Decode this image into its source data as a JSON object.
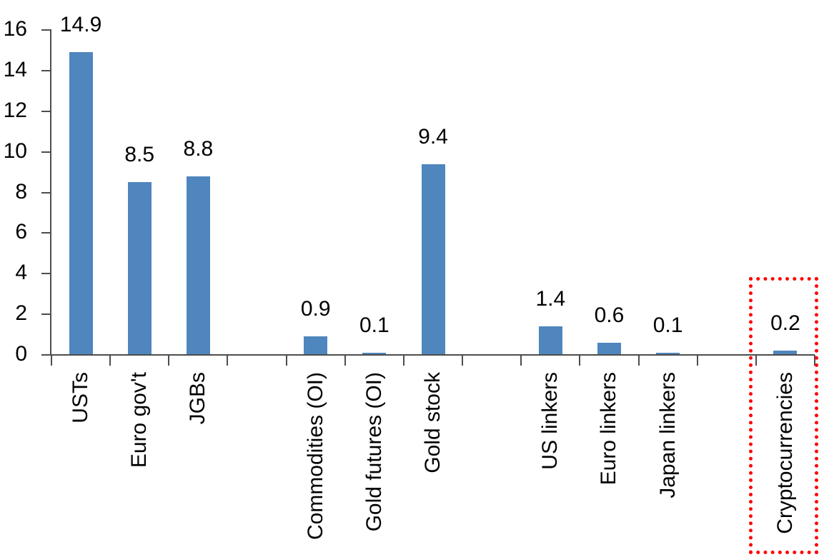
{
  "chart_data": {
    "type": "bar",
    "categories": [
      "USTs",
      "Euro gov't",
      "JGBs",
      "",
      "Commodities (OI)",
      "Gold futures (OI)",
      "Gold stock",
      "",
      "US linkers",
      "Euro linkers",
      "Japan linkers",
      "",
      "Cryptocurrencies"
    ],
    "values": [
      14.9,
      8.5,
      8.8,
      null,
      0.9,
      0.1,
      9.4,
      null,
      1.4,
      0.6,
      0.1,
      null,
      0.2
    ],
    "data_labels": [
      "14.9",
      "8.5",
      "8.8",
      "",
      "0.9",
      "0.1",
      "9.4",
      "",
      "1.4",
      "0.6",
      "0.1",
      "",
      "0.2"
    ],
    "yticks": [
      0,
      2,
      4,
      6,
      8,
      10,
      12,
      14,
      16
    ],
    "ylim": [
      0,
      16
    ],
    "title": "",
    "xlabel": "",
    "ylabel": "",
    "grid": false,
    "legend": null,
    "bar_color": "#4E86BD",
    "axis_color": "#4D4D4D",
    "text_color": "#000000",
    "highlight": {
      "category": "Cryptocurrencies",
      "box_color": "#FF0000",
      "box_style": "dotted"
    }
  }
}
